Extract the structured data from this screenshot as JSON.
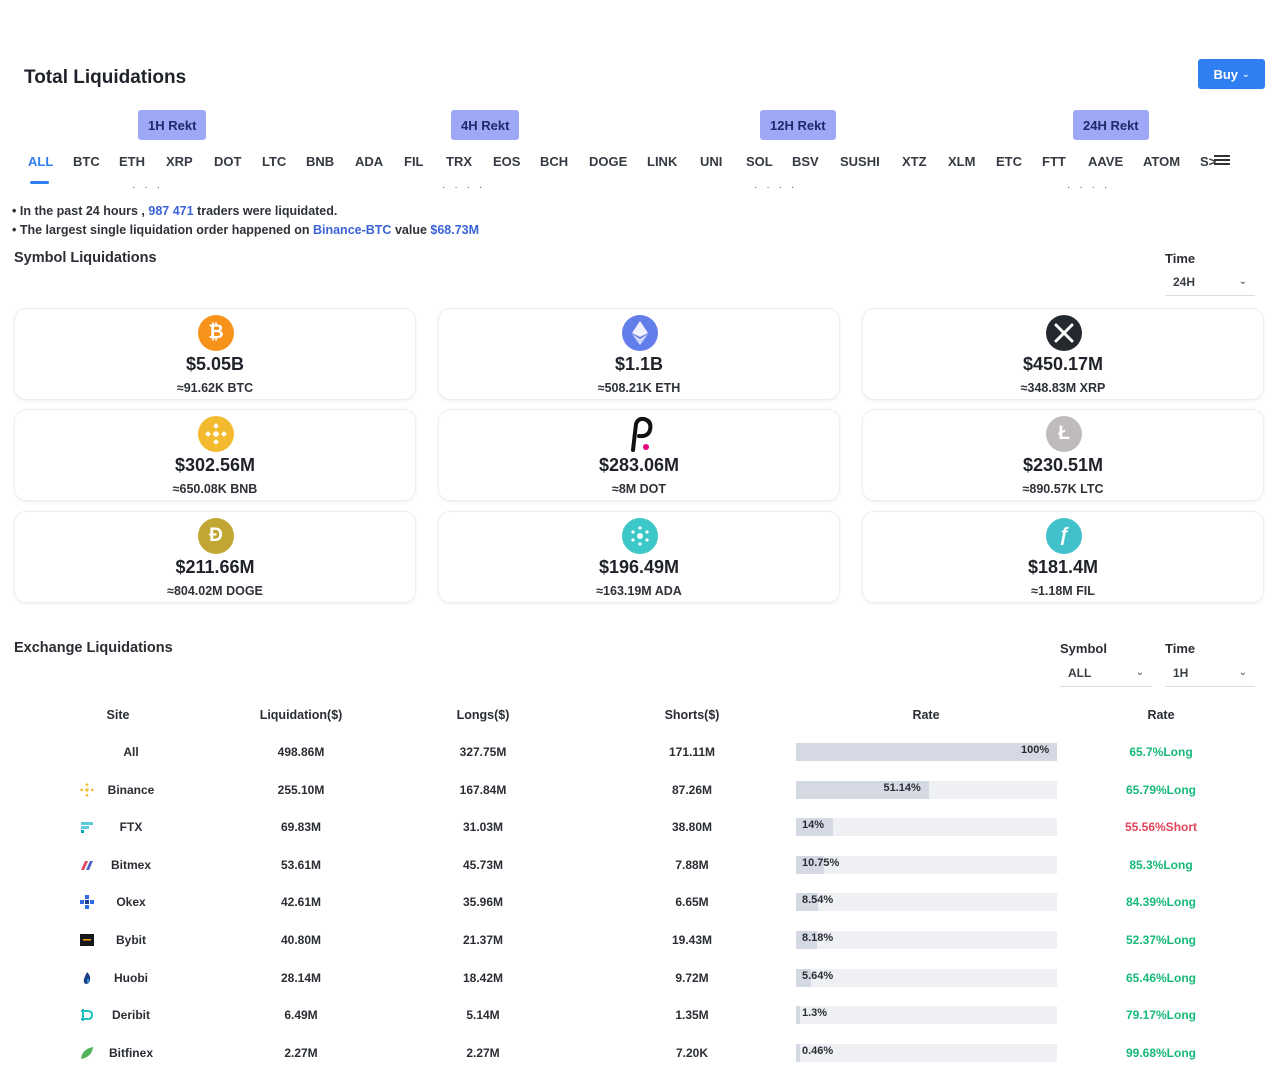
{
  "header": {
    "title": "Total Liquidations",
    "buy_label": "Buy"
  },
  "rekt_badges": [
    "1H Rekt",
    "4H Rekt",
    "12H Rekt",
    "24H Rekt"
  ],
  "symbol_tabs": [
    "ALL",
    "BTC",
    "ETH",
    "XRP",
    "DOT",
    "LTC",
    "BNB",
    "ADA",
    "FIL",
    "TRX",
    "EOS",
    "BCH",
    "DOGE",
    "LINK",
    "UNI",
    "SOL",
    "BSV",
    "SUSHI",
    "XTZ",
    "XLM",
    "ETC",
    "FTT",
    "AAVE",
    "ATOM",
    "S>"
  ],
  "info": {
    "line1_prefix": "In the past 24 hours ,",
    "line1_count": "987 471",
    "line1_suffix": "traders were liquidated.",
    "line2_prefix": "The largest single liquidation order happened on",
    "line2_exchange": "Binance-BTC",
    "line2_mid": "value",
    "line2_value": "$68.73M"
  },
  "symbol_section": {
    "title": "Symbol Liquidations",
    "time_label": "Time",
    "time_value": "24H"
  },
  "coins": [
    {
      "symbol": "BTC",
      "icon": "bitcoin-icon",
      "amount": "$5.05B",
      "sub": "≈91.62K BTC",
      "color": "#f7931a"
    },
    {
      "symbol": "ETH",
      "icon": "ethereum-icon",
      "amount": "$1.1B",
      "sub": "≈508.21K ETH",
      "color": "#627eea"
    },
    {
      "symbol": "XRP",
      "icon": "xrp-icon",
      "amount": "$450.17M",
      "sub": "≈348.83M XRP",
      "color": "#23292f"
    },
    {
      "symbol": "BNB",
      "icon": "bnb-icon",
      "amount": "$302.56M",
      "sub": "≈650.08K BNB",
      "color": "#f3ba2f"
    },
    {
      "symbol": "DOT",
      "icon": "polkadot-icon",
      "amount": "$283.06M",
      "sub": "≈8M DOT",
      "color": "#e6007a"
    },
    {
      "symbol": "LTC",
      "icon": "litecoin-icon",
      "amount": "$230.51M",
      "sub": "≈890.57K LTC",
      "color": "#bfbbbb"
    },
    {
      "symbol": "DOGE",
      "icon": "dogecoin-icon",
      "amount": "$211.66M",
      "sub": "≈804.02M DOGE",
      "color": "#c2a633"
    },
    {
      "symbol": "ADA",
      "icon": "cardano-icon",
      "amount": "$196.49M",
      "sub": "≈163.19M ADA",
      "color": "#3cc8c8"
    },
    {
      "symbol": "FIL",
      "icon": "filecoin-icon",
      "amount": "$181.4M",
      "sub": "≈1.18M FIL",
      "color": "#42c1ca"
    }
  ],
  "exchange_section": {
    "title": "Exchange Liquidations",
    "symbol_label": "Symbol",
    "symbol_value": "ALL",
    "time_label": "Time",
    "time_value": "1H",
    "columns": [
      "Site",
      "Liquidation($)",
      "Longs($)",
      "Shorts($)",
      "Rate",
      "Rate"
    ]
  },
  "exchanges": [
    {
      "site": "All",
      "icon": "",
      "liq": "498.86M",
      "longs": "327.75M",
      "shorts": "171.11M",
      "share_pct": 100,
      "share_label": "100%",
      "rate": "65.7%Long",
      "rate_color": "#17b978"
    },
    {
      "site": "Binance",
      "icon": "binance-icon",
      "liq": "255.10M",
      "longs": "167.84M",
      "shorts": "87.26M",
      "share_pct": 51.14,
      "share_label": "51.14%",
      "rate": "65.79%Long",
      "rate_color": "#17b978"
    },
    {
      "site": "FTX",
      "icon": "ftx-icon",
      "liq": "69.83M",
      "longs": "31.03M",
      "shorts": "38.80M",
      "share_pct": 14,
      "share_label": "14%",
      "rate": "55.56%Short",
      "rate_color": "#e0445a"
    },
    {
      "site": "Bitmex",
      "icon": "bitmex-icon",
      "liq": "53.61M",
      "longs": "45.73M",
      "shorts": "7.88M",
      "share_pct": 10.75,
      "share_label": "10.75%",
      "rate": "85.3%Long",
      "rate_color": "#17b978"
    },
    {
      "site": "Okex",
      "icon": "okex-icon",
      "liq": "42.61M",
      "longs": "35.96M",
      "shorts": "6.65M",
      "share_pct": 8.54,
      "share_label": "8.54%",
      "rate": "84.39%Long",
      "rate_color": "#17b978"
    },
    {
      "site": "Bybit",
      "icon": "bybit-icon",
      "liq": "40.80M",
      "longs": "21.37M",
      "shorts": "19.43M",
      "share_pct": 8.18,
      "share_label": "8.18%",
      "rate": "52.37%Long",
      "rate_color": "#17b978"
    },
    {
      "site": "Huobi",
      "icon": "huobi-icon",
      "liq": "28.14M",
      "longs": "18.42M",
      "shorts": "9.72M",
      "share_pct": 5.64,
      "share_label": "5.64%",
      "rate": "65.46%Long",
      "rate_color": "#17b978"
    },
    {
      "site": "Deribit",
      "icon": "deribit-icon",
      "liq": "6.49M",
      "longs": "5.14M",
      "shorts": "1.35M",
      "share_pct": 1.3,
      "share_label": "1.3%",
      "rate": "79.17%Long",
      "rate_color": "#17b978"
    },
    {
      "site": "Bitfinex",
      "icon": "bitfinex-icon",
      "liq": "2.27M",
      "longs": "2.27M",
      "shorts": "7.20K",
      "share_pct": 0.46,
      "share_label": "0.46%",
      "rate": "99.68%Long",
      "rate_color": "#17b978"
    }
  ]
}
